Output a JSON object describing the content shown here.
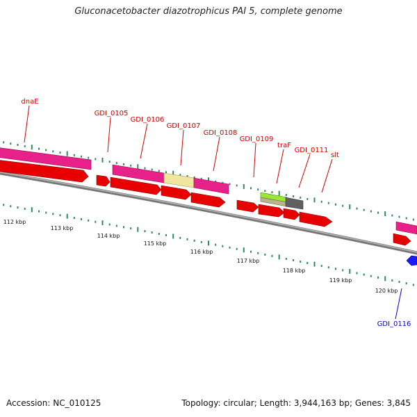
{
  "title": "Gluconacetobacter diazotrophicus PAI 5, complete genome",
  "footer": {
    "accession": "Accession: NC_010125",
    "summary": "Topology: circular; Length: 3,944,163 bp; Genes: 3,845"
  },
  "colors": {
    "background": "#ffffff",
    "backbone": "#808080",
    "tick": "#2e8b57",
    "label_red": "#cc0000",
    "label_blue": "#0000cc",
    "gene_magenta": "#e8208a",
    "gene_red": "#e80000",
    "gene_yellow": "#f0e6a0",
    "gene_lime": "#9be636",
    "gene_gray": "#606060",
    "gene_blue": "#1a1aff"
  },
  "scale": {
    "ticks": [
      {
        "label": "112 kbp",
        "kbp": 112
      },
      {
        "label": "113 kbp",
        "kbp": 113
      },
      {
        "label": "114 kbp",
        "kbp": 114
      },
      {
        "label": "115 kbp",
        "kbp": 115
      },
      {
        "label": "116 kbp",
        "kbp": 116
      },
      {
        "label": "117 kbp",
        "kbp": 117
      },
      {
        "label": "118 kbp",
        "kbp": 118
      },
      {
        "label": "119 kbp",
        "kbp": 119
      },
      {
        "label": "120 kbp",
        "kbp": 120
      }
    ]
  },
  "genes": [
    {
      "name": "dnaE",
      "track": "outer",
      "color": "gene_magenta",
      "strand": "+"
    },
    {
      "name": "GDI_0105",
      "track": "outer",
      "color": "gene_magenta",
      "strand": "+"
    },
    {
      "name": "GDI_0106",
      "track": "outer",
      "color": "gene_magenta",
      "strand": "+"
    },
    {
      "name": "GDI_0107",
      "track": "outer",
      "color": "gene_yellow",
      "strand": "+"
    },
    {
      "name": "GDI_0108",
      "track": "outer",
      "color": "gene_magenta",
      "strand": "+"
    },
    {
      "name": "GDI_0109",
      "track": "outer",
      "color": "gene_lime",
      "strand": "+"
    },
    {
      "name": "traF",
      "track": "outer",
      "color": "gene_gray",
      "strand": "+"
    },
    {
      "name": "GDI_0111",
      "track": "outer",
      "color": "gene_red",
      "strand": "+"
    },
    {
      "name": "slt",
      "track": "outer",
      "color": "gene_red",
      "strand": "+"
    },
    {
      "name": "GDI_0116",
      "track": "inner",
      "color": "gene_blue",
      "strand": "-"
    }
  ]
}
